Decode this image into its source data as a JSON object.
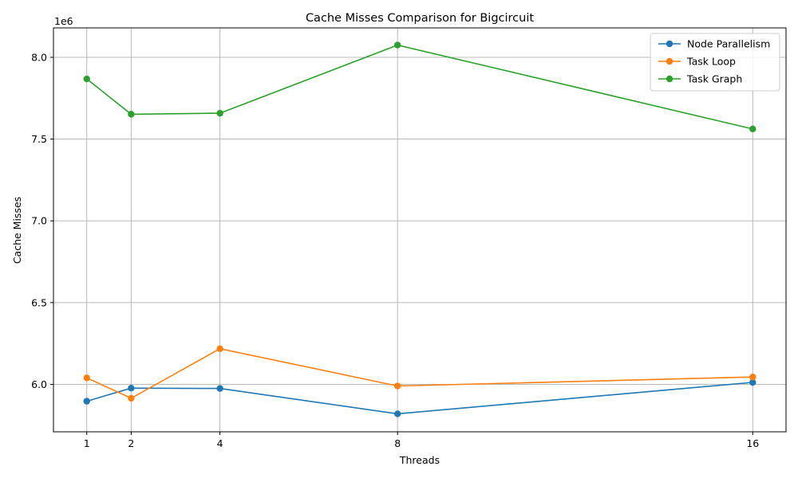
{
  "chart_data": {
    "type": "line",
    "title": "Cache Misses Comparison for Bigcircuit",
    "xlabel": "Threads",
    "ylabel": "Cache Misses",
    "y_offset_label": "1e6",
    "y_scale": 1000000,
    "x": [
      1,
      2,
      4,
      8,
      16
    ],
    "x_ticks": [
      "1",
      "2",
      "4",
      "8",
      "16"
    ],
    "xlim": [
      0.25,
      16.75
    ],
    "ylim": [
      5710000,
      8180000
    ],
    "y_ticks": [
      6000000,
      6500000,
      7000000,
      7500000,
      8000000
    ],
    "y_tick_labels": [
      "6.0",
      "6.5",
      "7.0",
      "7.5",
      "8.0"
    ],
    "grid": true,
    "legend_position": "top-right",
    "series": [
      {
        "name": "Node Parallelism",
        "color": "#1f77b4",
        "values": [
          5897000,
          5977000,
          5975000,
          5820000,
          6012000
        ]
      },
      {
        "name": "Task Loop",
        "color": "#ff7f0e",
        "values": [
          6040000,
          5915000,
          6218000,
          5990000,
          6045000
        ]
      },
      {
        "name": "Task Graph",
        "color": "#2ca02c",
        "values": [
          7868000,
          7652000,
          7658000,
          8075000,
          7562000
        ]
      }
    ]
  }
}
